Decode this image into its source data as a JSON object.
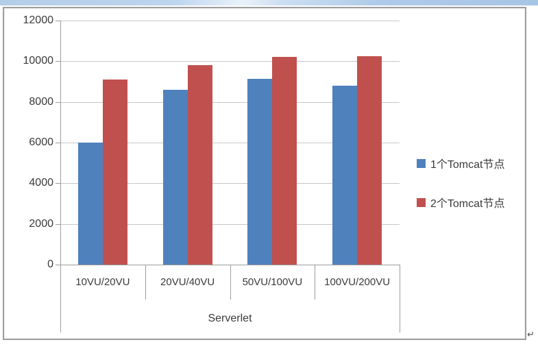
{
  "page": {
    "paragraph_mark": "↵"
  },
  "chart_data": {
    "type": "bar",
    "xlabel": "Serverlet",
    "categories": [
      "10VU/20VU",
      "20VU/40VU",
      "50VU/100VU",
      "100VU/200VU"
    ],
    "series": [
      {
        "name": "1个Tomcat节点",
        "color": "#4f81bd",
        "values": [
          6000,
          8600,
          9150,
          8800
        ]
      },
      {
        "name": "2个Tomcat节点",
        "color": "#c0504d",
        "values": [
          9100,
          9800,
          10200,
          10250
        ]
      }
    ],
    "ylim": [
      0,
      12000
    ],
    "ytick_step": 2000,
    "ytick_labels": [
      "0",
      "2000",
      "4000",
      "6000",
      "8000",
      "10000",
      "12000"
    ],
    "grid": true,
    "legend_position": "right-middle"
  },
  "colors": {
    "gridline": "#c6c6c6",
    "axis": "#9c9c9c",
    "text": "#3a3a3a",
    "frame_border": "#9d9d9d",
    "top_strip": "#aecbe9"
  }
}
